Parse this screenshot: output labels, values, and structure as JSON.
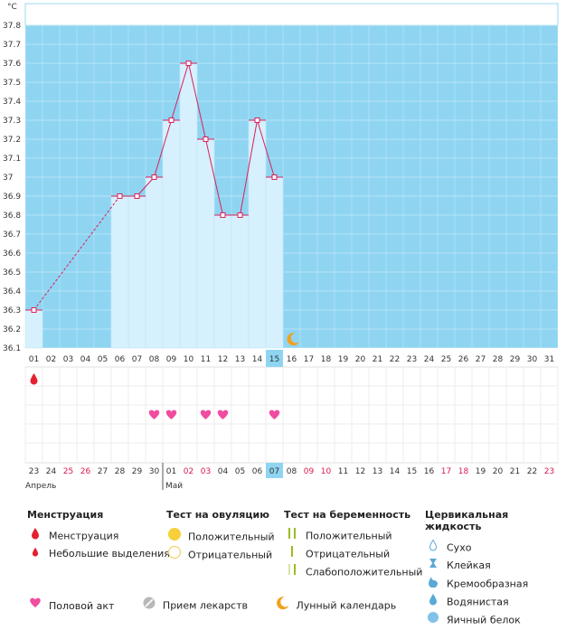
{
  "chart_data": {
    "type": "line",
    "unit_label": "°C",
    "ylim": [
      36.1,
      37.8
    ],
    "y_ticks": [
      "37.8",
      "37.7",
      "37.6",
      "37.5",
      "37.4",
      "37.3",
      "37.2",
      "37.1",
      "37",
      "36.9",
      "36.8",
      "36.7",
      "36.6",
      "36.5",
      "36.4",
      "36.3",
      "36.2",
      "36.1"
    ],
    "cycle_days": [
      "01",
      "02",
      "03",
      "04",
      "05",
      "06",
      "07",
      "08",
      "09",
      "10",
      "11",
      "12",
      "13",
      "14",
      "15",
      "16",
      "17",
      "18",
      "19",
      "20",
      "21",
      "22",
      "23",
      "24",
      "25",
      "26",
      "27",
      "28",
      "29",
      "30",
      "31"
    ],
    "today_day": "15",
    "temperatures": [
      36.3,
      null,
      null,
      null,
      null,
      36.9,
      36.9,
      37.0,
      37.3,
      37.6,
      37.2,
      36.8,
      36.8,
      37.3,
      37.0,
      null,
      null,
      null,
      null,
      null,
      null,
      null,
      null,
      null,
      null,
      null,
      null,
      null,
      null,
      null,
      null
    ],
    "menstruation_days": [
      "01"
    ],
    "intercourse_days": [
      "08",
      "09",
      "11",
      "12",
      "15"
    ],
    "moon_day": "16",
    "dates": [
      "23",
      "24",
      "25",
      "26",
      "27",
      "28",
      "29",
      "30",
      "01",
      "02",
      "03",
      "04",
      "05",
      "06",
      "07",
      "08",
      "09",
      "10",
      "11",
      "12",
      "13",
      "14",
      "15",
      "16",
      "17",
      "18",
      "19",
      "20",
      "21",
      "22",
      "23"
    ],
    "red_dates_idx": [
      2,
      3,
      9,
      10,
      16,
      17,
      24,
      25,
      30
    ],
    "today_date": "07",
    "month_labels": [
      {
        "label": "Апрель",
        "idx": 0
      },
      {
        "label": "Май",
        "idx": 8
      }
    ]
  },
  "legend": {
    "menstruation": {
      "title": "Менструация",
      "items": [
        "Менструация",
        "Небольшие выделения"
      ]
    },
    "ovulation_test": {
      "title": "Тест на овуляцию",
      "items": [
        "Положительный",
        "Отрицательный"
      ]
    },
    "pregnancy_test": {
      "title": "Тест на беременность",
      "items": [
        "Положительный",
        "Отрицательный",
        "Слабоположительный"
      ]
    },
    "cervical_fluid": {
      "title": "Цервикальная жидкость",
      "items": [
        "Сухо",
        "Клейкая",
        "Кремообразная",
        "Водянистая",
        "Яичный белок"
      ]
    },
    "bottom": [
      "Половой акт",
      "Прием лекарств",
      "Лунный календарь"
    ]
  },
  "colors": {
    "sky": "#8fd5f2",
    "bar": "#d6f0fd",
    "line": "#dc1f5a",
    "heart": "#f04ca0",
    "drop": "#e4202f",
    "moon": "#f1a11d"
  }
}
